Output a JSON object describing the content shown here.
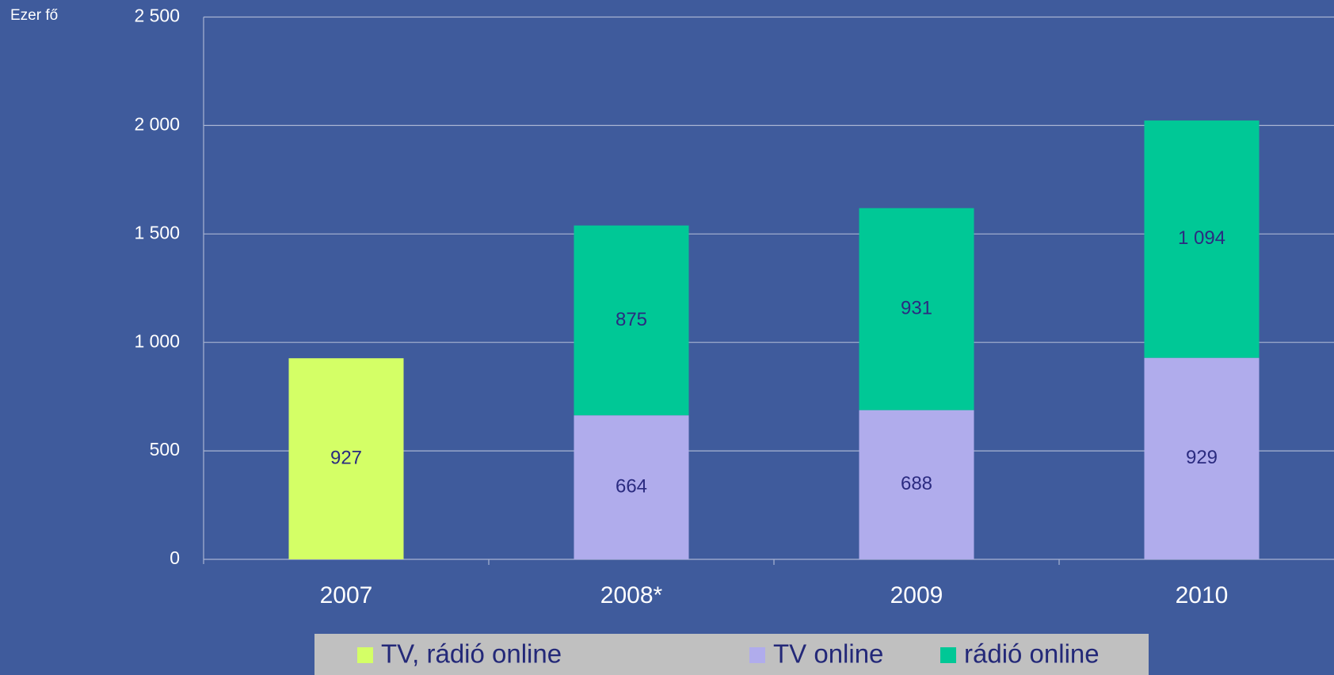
{
  "chart_data": {
    "type": "stacked_bar",
    "y_label": "Ezer fő",
    "categories": [
      "2007",
      "2008*",
      "2009",
      "2010"
    ],
    "series": [
      {
        "name": "TV, rádió online",
        "color": "#d4ff66",
        "values": [
          927,
          null,
          null,
          null
        ]
      },
      {
        "name": "TV online",
        "color": "#b0acec",
        "values": [
          null,
          664,
          688,
          929
        ]
      },
      {
        "name": "rádió online",
        "color": "#00c896",
        "values": [
          null,
          875,
          931,
          1094
        ],
        "value_labels": [
          null,
          null,
          null,
          "1 094"
        ]
      }
    ],
    "ylim": [
      0,
      2500
    ],
    "yticks": [
      0,
      500,
      {
        "value": 1000,
        "label": "1 000"
      },
      {
        "value": 1500,
        "label": "1 500"
      },
      {
        "value": 2000,
        "label": "2 000"
      },
      {
        "value": 2500,
        "label": "2 500"
      }
    ],
    "grid": true
  }
}
